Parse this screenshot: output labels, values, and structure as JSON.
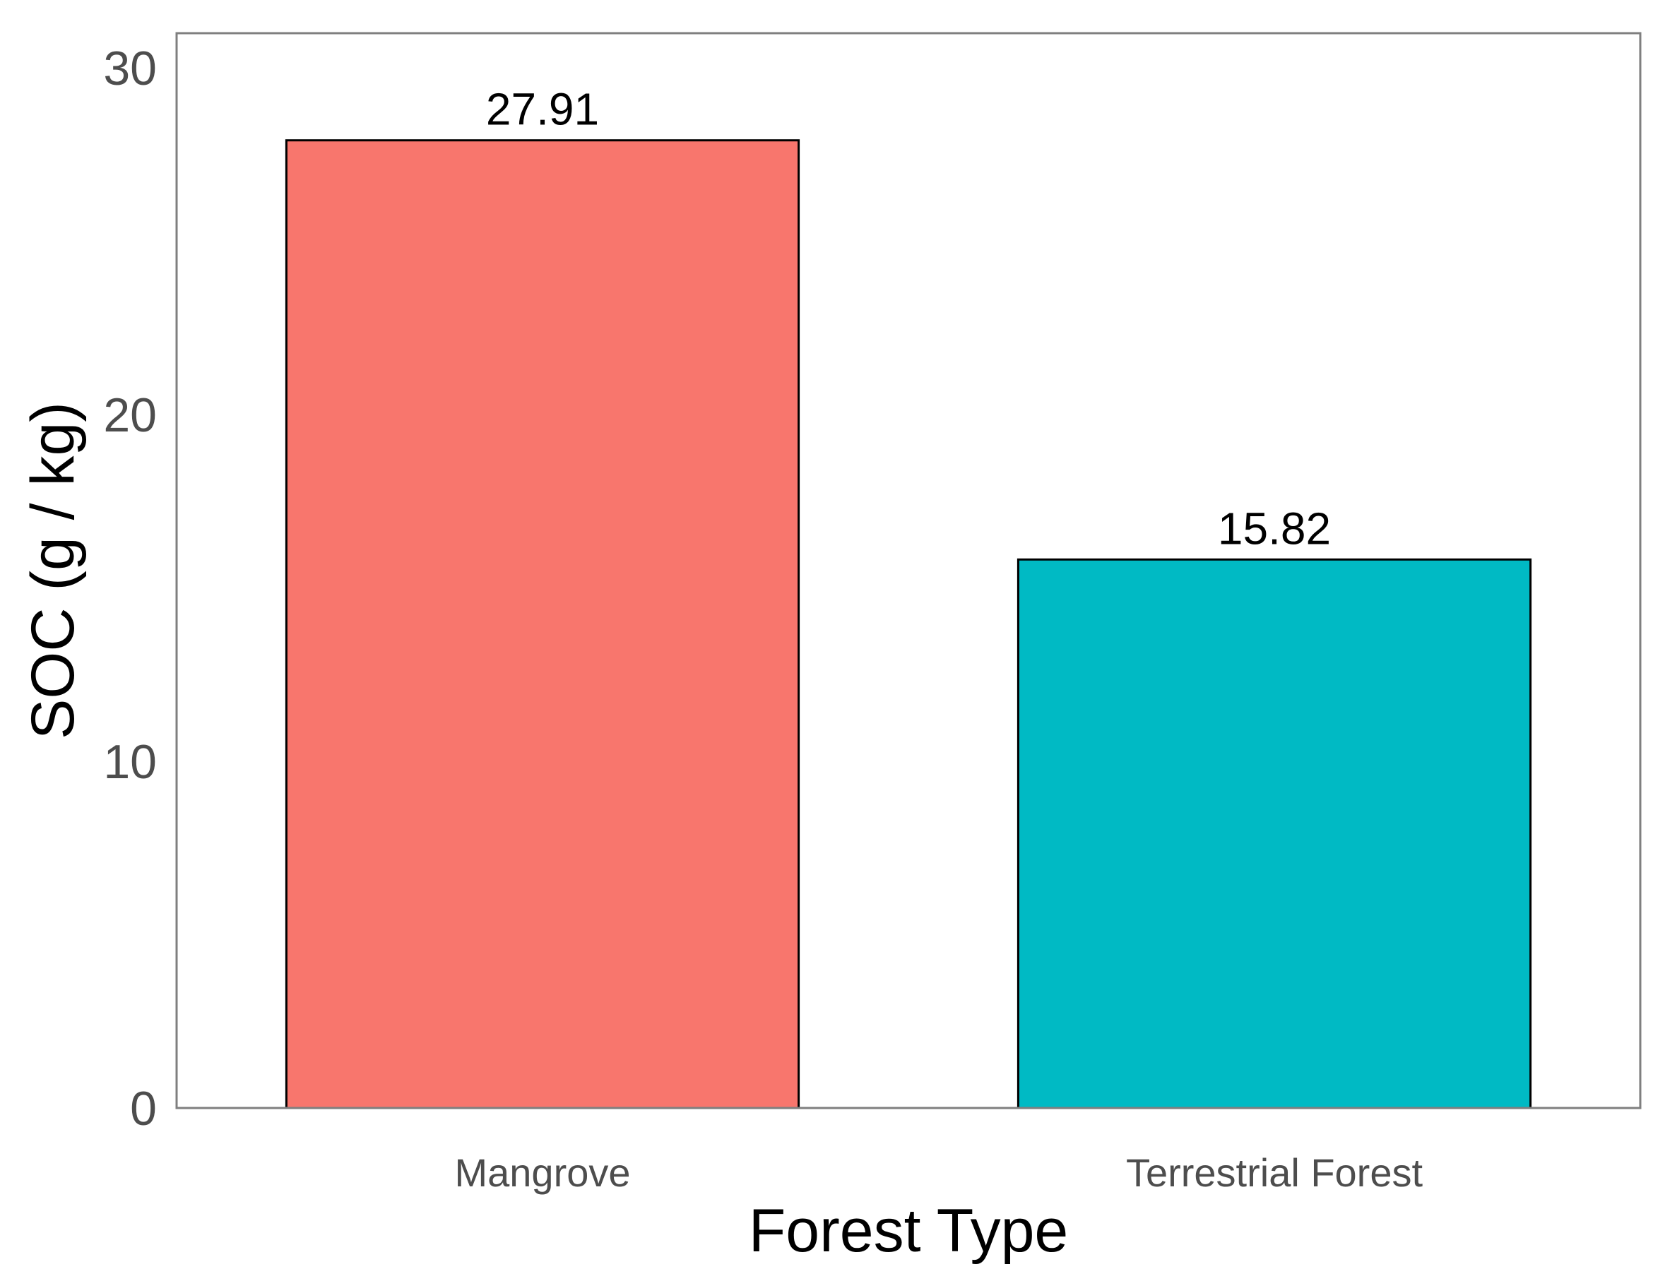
{
  "chart_data": {
    "type": "bar",
    "title": "",
    "xlabel": "Forest Type",
    "ylabel": "SOC (g / kg)",
    "ylim": [
      0,
      31
    ],
    "yticks": [
      0,
      10,
      20,
      30
    ],
    "categories": [
      "Mangrove",
      "Terrestrial Forest"
    ],
    "values": [
      27.91,
      15.82
    ],
    "data_labels": [
      "27.91",
      "15.82"
    ],
    "colors": [
      "#F8766D",
      "#00BA C4"
    ],
    "bar_outline_color": "#000000",
    "panel_border_color": "#7f7f7f",
    "grid": false,
    "legend": "none"
  }
}
